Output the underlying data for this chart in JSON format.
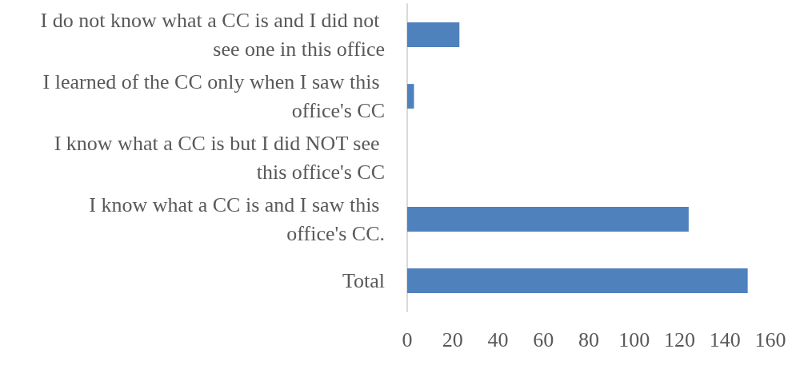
{
  "chart_data": {
    "type": "bar",
    "orientation": "horizontal",
    "categories": [
      "I do not know what a CC is and I did not see one in this office",
      "I learned of the CC only when I saw this office's CC",
      "I know what a CC is but I did NOT see this office's CC",
      "I know what a CC is and I saw this office's CC.",
      "Total"
    ],
    "values": [
      23,
      3,
      0,
      124,
      150
    ],
    "color": "#4f81bd",
    "xlim": [
      0,
      160
    ],
    "xticks": [
      0,
      20,
      40,
      60,
      80,
      100,
      120,
      140,
      160
    ],
    "grid": false
  }
}
